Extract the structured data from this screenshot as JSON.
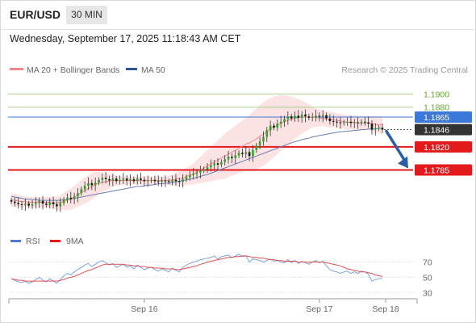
{
  "header": {
    "symbol": "EUR/USD",
    "timeframe": "30 MIN",
    "datetime": "Wednesday, September 17, 2025 11:18:43 AM CET"
  },
  "legend": {
    "ma20_label": "MA 20 + Bollinger Bands",
    "ma50_label": "MA 50",
    "credit": "Research © 2025 Trading Central"
  },
  "rsi_legend": {
    "rsi_label": "RSI",
    "ma_label": "9MA"
  },
  "colors": {
    "ma20": "#f08a8a",
    "bollinger_fill": "#fbd4d4",
    "ma50": "#6a7fb5",
    "up_candle": "#33a02c",
    "down_candle": "#1a1a1a",
    "resistance_green": "#a8d08d",
    "pivot_blue": "#3b78d8",
    "support_red": "#e31a1c",
    "current_price_bg": "#333333",
    "arrow": "#2a5fa5",
    "rsi_line": "#7ba3e0",
    "rsi_ma": "#e05050"
  },
  "chart_data": [
    {
      "type": "candlestick",
      "title": "EUR/USD 30 MIN",
      "x_axis_labels": [
        "Sep 16",
        "Sep 17",
        "Sep 18"
      ],
      "ylim": [
        1.17,
        1.192
      ],
      "levels": [
        {
          "value": 1.19,
          "label": "1.1900",
          "kind": "resistance"
        },
        {
          "value": 1.188,
          "label": "1.1880",
          "kind": "resistance"
        },
        {
          "value": 1.1865,
          "label": "1.1865",
          "kind": "pivot"
        },
        {
          "value": 1.1846,
          "label": "1.1846",
          "kind": "current"
        },
        {
          "value": 1.182,
          "label": "1.1820",
          "kind": "support"
        },
        {
          "value": 1.1785,
          "label": "1.1785",
          "kind": "support"
        }
      ],
      "close": [
        1.1737,
        1.1735,
        1.1733,
        1.1732,
        1.1734,
        1.1731,
        1.1733,
        1.1735,
        1.1738,
        1.1734,
        1.1732,
        1.1736,
        1.1733,
        1.173,
        1.1735,
        1.174,
        1.1743,
        1.1741,
        1.1745,
        1.175,
        1.1756,
        1.1761,
        1.1765,
        1.1762,
        1.1766,
        1.177,
        1.1773,
        1.1771,
        1.1769,
        1.1772,
        1.1768,
        1.177,
        1.1772,
        1.1769,
        1.1771,
        1.1768,
        1.1772,
        1.177,
        1.1768,
        1.1769,
        1.177,
        1.1768,
        1.1767,
        1.1769,
        1.1768,
        1.1767,
        1.177,
        1.1768,
        1.1767,
        1.1771,
        1.1774,
        1.1777,
        1.1779,
        1.1781,
        1.1784,
        1.1786,
        1.1789,
        1.1792,
        1.1795,
        1.1793,
        1.1797,
        1.1801,
        1.1805,
        1.1803,
        1.1807,
        1.1811,
        1.1809,
        1.1812,
        1.1806,
        1.1815,
        1.1822,
        1.1828,
        1.1835,
        1.1845,
        1.1852,
        1.1849,
        1.1855,
        1.1858,
        1.1862,
        1.1866,
        1.1863,
        1.1867,
        1.1864,
        1.1869,
        1.1866,
        1.1864,
        1.1865,
        1.1867,
        1.1866,
        1.1868,
        1.1863,
        1.1859,
        1.1858,
        1.1857,
        1.1856,
        1.1857,
        1.1858,
        1.1856,
        1.1857,
        1.1856,
        1.1858,
        1.1857,
        1.1855,
        1.1846,
        1.1848,
        1.1849,
        1.1846
      ],
      "ma20": [
        1.174,
        1.1739,
        1.1738,
        1.1737,
        1.1737,
        1.1736,
        1.1736,
        1.1736,
        1.1736,
        1.1736,
        1.1736,
        1.1736,
        1.1735,
        1.1735,
        1.1736,
        1.1737,
        1.1739,
        1.1741,
        1.1744,
        1.1747,
        1.1751,
        1.1754,
        1.1757,
        1.176,
        1.1763,
        1.1765,
        1.1766,
        1.1767,
        1.1768,
        1.1769,
        1.1769,
        1.1769,
        1.1769,
        1.1769,
        1.1769,
        1.1769,
        1.1769,
        1.1769,
        1.1769,
        1.1769,
        1.1769,
        1.1769,
        1.1769,
        1.1769,
        1.1769,
        1.1769,
        1.177,
        1.1771,
        1.1772,
        1.1773,
        1.1775,
        1.1777,
        1.1779,
        1.1782,
        1.1785,
        1.1788,
        1.1791,
        1.1794,
        1.1797,
        1.18,
        1.1803,
        1.1806,
        1.1809,
        1.1812,
        1.1815,
        1.1818,
        1.1821,
        1.1824,
        1.1826,
        1.1829,
        1.1832,
        1.1836,
        1.1839,
        1.1843,
        1.1847,
        1.185,
        1.1853,
        1.1856,
        1.1858,
        1.186,
        1.1862,
        1.1863,
        1.1864,
        1.1865,
        1.1865,
        1.1865,
        1.1865,
        1.1864,
        1.1864,
        1.1863,
        1.1862,
        1.1861,
        1.1861,
        1.186,
        1.1859,
        1.1858,
        1.1857,
        1.1857,
        1.1857,
        1.1856,
        1.1856,
        1.1856,
        1.1856,
        1.1855,
        1.1854,
        1.1853,
        1.1853
      ],
      "ma50": [
        1.1745,
        1.1744,
        1.1743,
        1.1742,
        1.1741,
        1.1741,
        1.174,
        1.174,
        1.1739,
        1.1739,
        1.1739,
        1.1739,
        1.1739,
        1.1739,
        1.1739,
        1.174,
        1.174,
        1.1741,
        1.1742,
        1.1743,
        1.1744,
        1.1745,
        1.1746,
        1.1747,
        1.1748,
        1.1749,
        1.175,
        1.1751,
        1.1752,
        1.1753,
        1.1754,
        1.1755,
        1.1756,
        1.1757,
        1.1758,
        1.1759,
        1.176,
        1.176,
        1.1761,
        1.1762,
        1.1762,
        1.1763,
        1.1764,
        1.1764,
        1.1765,
        1.1765,
        1.1766,
        1.1767,
        1.1768,
        1.1769,
        1.177,
        1.1771,
        1.1772,
        1.1774,
        1.1775,
        1.1777,
        1.1778,
        1.178,
        1.1782,
        1.1784,
        1.1786,
        1.1788,
        1.179,
        1.1792,
        1.1794,
        1.1796,
        1.1798,
        1.18,
        1.1802,
        1.1804,
        1.1806,
        1.1808,
        1.181,
        1.1812,
        1.1814,
        1.1816,
        1.1818,
        1.182,
        1.1822,
        1.1824,
        1.1826,
        1.1828,
        1.1829,
        1.1831,
        1.1832,
        1.1833,
        1.1835,
        1.1836,
        1.1837,
        1.1838,
        1.1839,
        1.184,
        1.1841,
        1.1842,
        1.1843,
        1.1843,
        1.1844,
        1.1844,
        1.1845,
        1.1845,
        1.1846,
        1.1846,
        1.1847,
        1.1847,
        1.1847,
        1.1848,
        1.1848
      ],
      "bollinger_width": [
        0.001,
        0.001,
        0.0009,
        0.0009,
        0.0008,
        0.0008,
        0.0008,
        0.0008,
        0.0008,
        0.0008,
        0.0008,
        0.0009,
        0.0009,
        0.001,
        0.0011,
        0.0013,
        0.0015,
        0.0016,
        0.0017,
        0.0018,
        0.0019,
        0.002,
        0.002,
        0.002,
        0.0019,
        0.0017,
        0.0015,
        0.0013,
        0.0011,
        0.0009,
        0.0008,
        0.0007,
        0.0006,
        0.0006,
        0.0006,
        0.0006,
        0.0006,
        0.0006,
        0.0006,
        0.0006,
        0.0006,
        0.0006,
        0.0006,
        0.0006,
        0.0006,
        0.0007,
        0.0008,
        0.001,
        0.0011,
        0.0012,
        0.0013,
        0.0014,
        0.0016,
        0.0018,
        0.002,
        0.0022,
        0.0024,
        0.0026,
        0.0028,
        0.003,
        0.0032,
        0.0034,
        0.0035,
        0.0036,
        0.0037,
        0.0038,
        0.0039,
        0.004,
        0.0042,
        0.0044,
        0.0046,
        0.0047,
        0.0048,
        0.0048,
        0.0047,
        0.0046,
        0.0044,
        0.0042,
        0.004,
        0.0037,
        0.0034,
        0.0031,
        0.0028,
        0.0025,
        0.0022,
        0.0019,
        0.0016,
        0.0014,
        0.0013,
        0.0012,
        0.0012,
        0.0012,
        0.0011,
        0.0011,
        0.0011,
        0.0011,
        0.0011,
        0.0011,
        0.0011,
        0.0011,
        0.0011,
        0.0011,
        0.0011,
        0.0012,
        0.0013,
        0.0013,
        0.0014
      ],
      "forecast_target": 1.1785
    },
    {
      "type": "line",
      "title": "RSI",
      "ylim": [
        25,
        80
      ],
      "y_ticks": [
        70,
        50,
        30
      ],
      "series": [
        {
          "name": "RSI",
          "values": [
            48,
            46,
            44,
            43,
            45,
            42,
            44,
            47,
            50,
            46,
            44,
            48,
            45,
            42,
            47,
            52,
            55,
            53,
            57,
            60,
            63,
            66,
            68,
            64,
            67,
            70,
            72,
            69,
            66,
            68,
            63,
            65,
            67,
            63,
            65,
            61,
            66,
            63,
            60,
            62,
            63,
            60,
            58,
            61,
            59,
            57,
            62,
            59,
            57,
            63,
            66,
            68,
            70,
            71,
            73,
            74,
            75,
            76,
            78,
            74,
            77,
            78,
            79,
            76,
            78,
            80,
            77,
            78,
            70,
            74,
            73,
            72,
            70,
            72,
            74,
            71,
            72,
            70,
            69,
            73,
            69,
            72,
            68,
            71,
            69,
            67,
            70,
            72,
            69,
            71,
            65,
            60,
            58,
            57,
            55,
            57,
            58,
            55,
            57,
            55,
            58,
            57,
            54,
            45,
            47,
            48,
            49
          ]
        },
        {
          "name": "9MA",
          "values": [
            48,
            47,
            46,
            46,
            45,
            45,
            45,
            45,
            45,
            45,
            45,
            45,
            45,
            45,
            46,
            47,
            49,
            50,
            51,
            53,
            55,
            57,
            59,
            60,
            62,
            64,
            66,
            67,
            67,
            67,
            67,
            67,
            67,
            66,
            66,
            65,
            65,
            64,
            64,
            63,
            63,
            62,
            62,
            62,
            61,
            61,
            61,
            60,
            60,
            61,
            62,
            63,
            64,
            65,
            67,
            68,
            70,
            71,
            72,
            73,
            74,
            75,
            76,
            76,
            77,
            77,
            78,
            78,
            77,
            76,
            76,
            75,
            75,
            74,
            73,
            73,
            72,
            72,
            71,
            71,
            71,
            71,
            70,
            70,
            70,
            70,
            70,
            70,
            70,
            70,
            69,
            68,
            67,
            66,
            65,
            63,
            61,
            60,
            59,
            58,
            57,
            57,
            56,
            55,
            53,
            52,
            51
          ]
        }
      ]
    }
  ]
}
